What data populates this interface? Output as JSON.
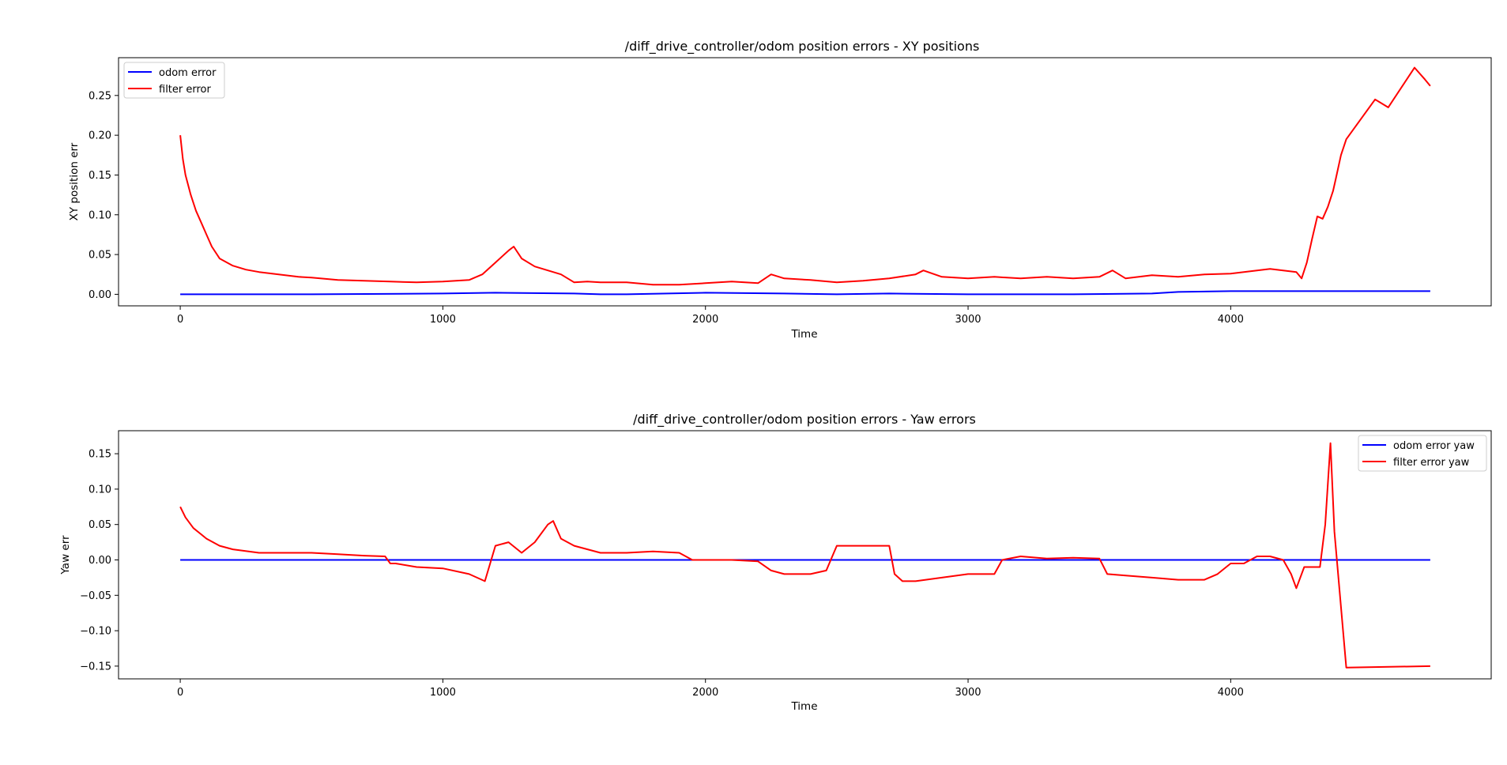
{
  "chart_data": [
    {
      "type": "line",
      "title": "/diff_drive_controller/odom position errors - XY positions",
      "xlabel": "Time",
      "ylabel": "XY position err",
      "xlim": [
        -235,
        4992
      ],
      "ylim": [
        -0.0145,
        0.2975
      ],
      "xticks": [
        0,
        1000,
        2000,
        3000,
        4000
      ],
      "yticks": [
        0.0,
        0.05,
        0.1,
        0.15,
        0.2,
        0.25
      ],
      "xtick_labels": [
        "0",
        "1000",
        "2000",
        "3000",
        "4000"
      ],
      "ytick_labels": [
        "0.00",
        "0.05",
        "0.10",
        "0.15",
        "0.20",
        "0.25"
      ],
      "legend_position": "top-left",
      "grid": false,
      "series": [
        {
          "name": "odom error",
          "color": "#0000ff",
          "x": [
            0,
            500,
            1000,
            1200,
            1500,
            1600,
            1700,
            2000,
            2300,
            2500,
            2700,
            3000,
            3200,
            3400,
            3700,
            3800,
            4000,
            4200,
            4400,
            4600,
            4760
          ],
          "y": [
            0.0,
            0.0,
            0.001,
            0.002,
            0.001,
            0.0,
            0.0,
            0.002,
            0.001,
            0.0,
            0.001,
            0.0,
            0.0,
            0.0,
            0.001,
            0.003,
            0.004,
            0.004,
            0.004,
            0.004,
            0.004
          ]
        },
        {
          "name": "filter error",
          "color": "#ff0000",
          "x": [
            0,
            10,
            20,
            40,
            60,
            80,
            100,
            120,
            150,
            200,
            250,
            300,
            350,
            400,
            450,
            500,
            600,
            700,
            800,
            900,
            1000,
            1100,
            1150,
            1200,
            1250,
            1270,
            1300,
            1350,
            1400,
            1450,
            1500,
            1550,
            1600,
            1700,
            1800,
            1900,
            2000,
            2100,
            2200,
            2250,
            2300,
            2400,
            2500,
            2600,
            2700,
            2800,
            2830,
            2900,
            3000,
            3100,
            3200,
            3300,
            3400,
            3500,
            3550,
            3600,
            3700,
            3800,
            3900,
            4000,
            4100,
            4150,
            4200,
            4250,
            4270,
            4290,
            4310,
            4330,
            4350,
            4370,
            4380,
            4390,
            4400,
            4420,
            4440,
            4550,
            4600,
            4700,
            4740,
            4760
          ],
          "y": [
            0.2,
            0.17,
            0.15,
            0.125,
            0.105,
            0.09,
            0.075,
            0.06,
            0.045,
            0.036,
            0.031,
            0.028,
            0.026,
            0.024,
            0.022,
            0.021,
            0.018,
            0.017,
            0.016,
            0.015,
            0.016,
            0.018,
            0.025,
            0.04,
            0.055,
            0.06,
            0.045,
            0.035,
            0.03,
            0.025,
            0.015,
            0.016,
            0.015,
            0.015,
            0.012,
            0.012,
            0.014,
            0.016,
            0.014,
            0.025,
            0.02,
            0.018,
            0.015,
            0.017,
            0.02,
            0.025,
            0.03,
            0.022,
            0.02,
            0.022,
            0.02,
            0.022,
            0.02,
            0.022,
            0.03,
            0.02,
            0.024,
            0.022,
            0.025,
            0.026,
            0.03,
            0.032,
            0.03,
            0.028,
            0.02,
            0.04,
            0.07,
            0.098,
            0.095,
            0.11,
            0.12,
            0.13,
            0.145,
            0.175,
            0.195,
            0.245,
            0.235,
            0.285,
            0.27,
            0.262
          ]
        }
      ]
    },
    {
      "type": "line",
      "title": "/diff_drive_controller/odom position errors - Yaw errors",
      "xlabel": "Time",
      "ylabel": "Yaw err",
      "xlim": [
        -235,
        4992
      ],
      "ylim": [
        -0.168,
        0.1825
      ],
      "xticks": [
        0,
        1000,
        2000,
        3000,
        4000
      ],
      "yticks": [
        -0.15,
        -0.1,
        -0.05,
        0.0,
        0.05,
        0.1,
        0.15
      ],
      "xtick_labels": [
        "0",
        "1000",
        "2000",
        "3000",
        "4000"
      ],
      "ytick_labels": [
        "−0.15",
        "−0.10",
        "−0.05",
        "0.00",
        "0.05",
        "0.10",
        "0.15"
      ],
      "legend_position": "top-right",
      "grid": false,
      "series": [
        {
          "name": "odom error yaw",
          "color": "#0000ff",
          "x": [
            0,
            1000,
            2000,
            3000,
            4000,
            4400,
            4760
          ],
          "y": [
            0.0,
            0.0,
            0.0,
            0.0,
            0.0,
            0.0,
            0.0
          ]
        },
        {
          "name": "filter error yaw",
          "color": "#ff0000",
          "x": [
            0,
            20,
            50,
            100,
            150,
            200,
            300,
            400,
            500,
            600,
            700,
            780,
            800,
            820,
            900,
            1000,
            1100,
            1160,
            1200,
            1250,
            1300,
            1350,
            1400,
            1420,
            1450,
            1500,
            1600,
            1700,
            1800,
            1900,
            1950,
            2000,
            2100,
            2200,
            2250,
            2300,
            2400,
            2460,
            2500,
            2600,
            2700,
            2720,
            2750,
            2800,
            2900,
            3000,
            3100,
            3130,
            3200,
            3300,
            3400,
            3500,
            3530,
            3600,
            3700,
            3800,
            3900,
            3950,
            4000,
            4050,
            4100,
            4150,
            4200,
            4230,
            4250,
            4280,
            4300,
            4340,
            4360,
            4380,
            4395,
            4440,
            4760
          ],
          "y": [
            0.075,
            0.06,
            0.045,
            0.03,
            0.02,
            0.015,
            0.01,
            0.01,
            0.01,
            0.008,
            0.006,
            0.005,
            -0.005,
            -0.005,
            -0.01,
            -0.012,
            -0.02,
            -0.03,
            0.02,
            0.025,
            0.01,
            0.025,
            0.05,
            0.055,
            0.03,
            0.02,
            0.01,
            0.01,
            0.012,
            0.01,
            0.0,
            0.0,
            0.0,
            -0.002,
            -0.015,
            -0.02,
            -0.02,
            -0.015,
            0.02,
            0.02,
            0.02,
            -0.02,
            -0.03,
            -0.03,
            -0.025,
            -0.02,
            -0.02,
            0.0,
            0.005,
            0.002,
            0.003,
            0.002,
            -0.02,
            -0.022,
            -0.025,
            -0.028,
            -0.028,
            -0.02,
            -0.005,
            -0.005,
            0.005,
            0.005,
            0.0,
            -0.02,
            -0.04,
            -0.01,
            -0.01,
            -0.01,
            0.05,
            0.165,
            0.04,
            -0.152,
            -0.15
          ]
        }
      ]
    }
  ]
}
